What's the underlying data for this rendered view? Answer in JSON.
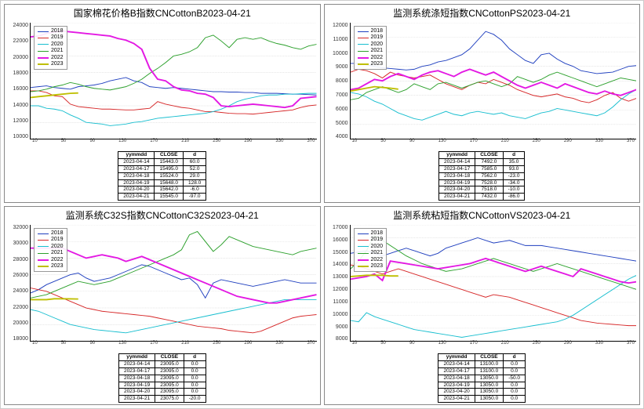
{
  "years": [
    "2018",
    "2019",
    "2020",
    "2021",
    "2022",
    "2023"
  ],
  "year_colors": {
    "2018": "#1f3fbf",
    "2019": "#d62728",
    "2020": "#17becf",
    "2021": "#2ca02c",
    "2022": "#e319e3",
    "2023": "#bfbf00"
  },
  "background_color": "#ffffff",
  "grid_color": "#cccccc",
  "axis_color": "#000000",
  "title_fontsize": 12,
  "tick_fontsize": 7,
  "legend_fontsize": 7,
  "table_fontsize": 6.5,
  "line_width": {
    "2018": 1,
    "2019": 1,
    "2020": 1,
    "2021": 1,
    "2022": 2,
    "2023": 2
  },
  "x_ticks": [
    10,
    30,
    50,
    70,
    90,
    110,
    130,
    150,
    170,
    190,
    210,
    230,
    250,
    270,
    290,
    310,
    330,
    350,
    370
  ],
  "panels": [
    {
      "key": "p1",
      "title": "国家棉花价格B指数CNCottonB2023-04-21",
      "type": "line",
      "ylim": [
        10000,
        24000
      ],
      "xlim": [
        10,
        370
      ],
      "y_ticks": [
        10000,
        12000,
        14000,
        16000,
        18000,
        20000,
        22000,
        24000
      ],
      "series": {
        "2018": [
          16200,
          16300,
          16400,
          16200,
          16100,
          16000,
          16300,
          16400,
          16500,
          16700,
          17000,
          17200,
          17400,
          17000,
          16800,
          16300,
          16200,
          16100,
          16200,
          16100,
          16000,
          15900,
          15800,
          15700,
          15700,
          15650,
          15650,
          15600,
          15600,
          15500,
          15500,
          15500,
          15450,
          15400,
          15400,
          15350,
          15300
        ],
        "2019": [
          15800,
          15800,
          15600,
          15200,
          15100,
          14200,
          13900,
          13800,
          13700,
          13600,
          13600,
          13550,
          13500,
          13500,
          13600,
          13700,
          14500,
          14200,
          14000,
          13800,
          13700,
          13500,
          13300,
          13300,
          13200,
          13100,
          13050,
          13050,
          13000,
          13100,
          13200,
          13300,
          13400,
          13500,
          13800,
          14000,
          14100
        ],
        "2020": [
          14000,
          14000,
          13700,
          13600,
          13400,
          12900,
          12500,
          12000,
          11900,
          11800,
          11600,
          11700,
          11800,
          12000,
          12100,
          12300,
          12500,
          12600,
          12700,
          12800,
          12900,
          13000,
          13100,
          13300,
          13600,
          14000,
          14500,
          14800,
          15000,
          15200,
          15300,
          15300,
          15400,
          15400,
          15450,
          15500,
          15500
        ],
        "2021": [
          15700,
          15800,
          16000,
          16300,
          16500,
          16800,
          16600,
          16300,
          16100,
          16000,
          15900,
          16100,
          16300,
          16700,
          17200,
          17900,
          18500,
          19200,
          20000,
          20200,
          20500,
          21000,
          22200,
          22500,
          21800,
          21000,
          22000,
          22200,
          22000,
          22200,
          21800,
          21500,
          21300,
          21000,
          20800,
          21200,
          21400
        ],
        "2022": [
          22300,
          22400,
          22700,
          22900,
          23000,
          22900,
          22800,
          22700,
          22600,
          22500,
          22400,
          22100,
          21900,
          21500,
          20800,
          18500,
          17200,
          17000,
          16300,
          15900,
          15800,
          15500,
          15400,
          15000,
          14000,
          13900,
          14000,
          14100,
          14200,
          14100,
          14000,
          13900,
          13800,
          14000,
          14900,
          15000,
          15100
        ],
        "2023": [
          15000,
          15100,
          15200,
          15300,
          15400,
          15500,
          15540
        ]
      },
      "table": {
        "cols": [
          "yymmdd",
          "CLOSE",
          "d"
        ],
        "rows": [
          [
            "2023-04-14",
            "15443.0",
            "60.0"
          ],
          [
            "2023-04-17",
            "15495.0",
            "52.0"
          ],
          [
            "2023-04-18",
            "15524.0",
            "29.0"
          ],
          [
            "2023-04-19",
            "15648.0",
            "128.0"
          ],
          [
            "2023-04-20",
            "15642.0",
            "-6.0"
          ],
          [
            "2023-04-21",
            "15545.0",
            "-97.0"
          ]
        ]
      }
    },
    {
      "key": "p2",
      "title": "监测系统涤短指数CNCottonPS2023-04-21",
      "type": "line",
      "ylim": [
        4000,
        12000
      ],
      "xlim": [
        10,
        370
      ],
      "y_ticks": [
        4000,
        5000,
        6000,
        7000,
        8000,
        9000,
        10000,
        11000,
        12000
      ],
      "series": {
        "2018": [
          9200,
          9200,
          9100,
          9000,
          8900,
          8850,
          8800,
          8750,
          8800,
          9000,
          9100,
          9300,
          9400,
          9600,
          9800,
          10200,
          10800,
          11400,
          11200,
          10800,
          10200,
          9800,
          9400,
          9200,
          9800,
          9900,
          9500,
          9200,
          9000,
          8700,
          8600,
          8500,
          8550,
          8600,
          8800,
          9000,
          9050
        ],
        "2019": [
          8600,
          8800,
          8700,
          8500,
          8200,
          8600,
          8400,
          8300,
          8200,
          8300,
          8400,
          8100,
          7800,
          7600,
          7400,
          7700,
          7900,
          7800,
          8100,
          7900,
          7700,
          7400,
          7200,
          7000,
          6900,
          7000,
          7100,
          6900,
          6800,
          6600,
          6500,
          6700,
          7000,
          7200,
          6800,
          6600,
          6800
        ],
        "2020": [
          7200,
          7100,
          6900,
          6600,
          6400,
          6100,
          5800,
          5600,
          5400,
          5300,
          5500,
          5700,
          5900,
          5700,
          5600,
          5800,
          5900,
          5800,
          5700,
          5800,
          5600,
          5500,
          5400,
          5600,
          5800,
          5900,
          6100,
          6000,
          5900,
          5800,
          5700,
          5600,
          5800,
          6200,
          6700,
          7100,
          7400
        ],
        "2021": [
          6700,
          6800,
          7200,
          7400,
          7600,
          7400,
          7200,
          7400,
          7800,
          7600,
          7400,
          7800,
          7900,
          7700,
          7500,
          7700,
          7900,
          8000,
          7800,
          7600,
          7800,
          8300,
          8100,
          7900,
          8100,
          8400,
          8600,
          8400,
          8200,
          8000,
          7800,
          7600,
          7800,
          8000,
          8200,
          8100,
          8000
        ],
        "2022": [
          7400,
          7500,
          7800,
          8100,
          8000,
          8300,
          8500,
          8300,
          8100,
          8400,
          8600,
          8700,
          8500,
          8300,
          8600,
          8800,
          8600,
          8400,
          8600,
          8300,
          8000,
          7700,
          7500,
          7700,
          7900,
          7700,
          7500,
          7800,
          7600,
          7400,
          7200,
          7100,
          7300,
          7100,
          7000,
          7200,
          7400
        ],
        "2023": [
          7300,
          7400,
          7500,
          7600,
          7550,
          7500,
          7430
        ]
      },
      "table": {
        "cols": [
          "yymmdd",
          "CLOSE",
          "d"
        ],
        "rows": [
          [
            "2023-04-14",
            "7492.0",
            "35.0"
          ],
          [
            "2023-04-17",
            "7585.0",
            "93.0"
          ],
          [
            "2023-04-18",
            "7562.0",
            "-23.0"
          ],
          [
            "2023-04-19",
            "7528.0",
            "-34.0"
          ],
          [
            "2023-04-20",
            "7518.0",
            "-10.0"
          ],
          [
            "2023-04-21",
            "7432.0",
            "-86.0"
          ]
        ]
      }
    },
    {
      "key": "p3",
      "title": "监测系统C32S指数CNCottonC32S2023-04-21",
      "type": "line",
      "ylim": [
        18000,
        32000
      ],
      "xlim": [
        10,
        370
      ],
      "y_ticks": [
        18000,
        20000,
        22000,
        24000,
        26000,
        28000,
        30000,
        32000
      ],
      "series": {
        "2018": [
          23800,
          24200,
          24800,
          25200,
          25600,
          26000,
          26200,
          25600,
          25200,
          25400,
          25600,
          26000,
          26400,
          26800,
          27200,
          27000,
          26600,
          26200,
          25800,
          25400,
          25600,
          24800,
          23200,
          25000,
          25400,
          25200,
          25000,
          24800,
          24600,
          24800,
          25000,
          25200,
          25400,
          25200,
          25000,
          25000,
          25000
        ],
        "2019": [
          24400,
          24200,
          24000,
          23600,
          23200,
          22800,
          22400,
          22000,
          21800,
          21600,
          21500,
          21400,
          21300,
          21200,
          21100,
          21000,
          20800,
          20600,
          20400,
          20200,
          20000,
          19800,
          19700,
          19600,
          19500,
          19300,
          19200,
          19100,
          19000,
          19200,
          19600,
          20000,
          20400,
          20800,
          21000,
          21100,
          21200
        ],
        "2020": [
          21800,
          21600,
          21200,
          20800,
          20400,
          20000,
          19800,
          19600,
          19400,
          19300,
          19200,
          19100,
          19000,
          19200,
          19400,
          19600,
          19800,
          20000,
          20200,
          20400,
          20600,
          20800,
          21000,
          21200,
          21400,
          21600,
          21800,
          22000,
          22200,
          22400,
          22600,
          22800,
          23000,
          23000,
          23000,
          23000,
          23000
        ],
        "2021": [
          23200,
          23400,
          23600,
          24000,
          24400,
          24800,
          25200,
          25000,
          24800,
          25000,
          25200,
          25600,
          26000,
          26400,
          26800,
          27200,
          27600,
          28000,
          28400,
          29000,
          30800,
          31200,
          30000,
          28800,
          29600,
          30600,
          30200,
          29800,
          29400,
          29200,
          29000,
          28800,
          28600,
          28400,
          28800,
          29000,
          29200
        ],
        "2022": [
          29200,
          29200,
          29200,
          29200,
          29200,
          28800,
          28400,
          28000,
          28200,
          28400,
          28200,
          28000,
          27600,
          27900,
          28200,
          27800,
          27400,
          27000,
          26600,
          26200,
          25800,
          25400,
          25000,
          24600,
          24200,
          23800,
          23400,
          23200,
          23000,
          22800,
          22600,
          22600,
          22800,
          23000,
          23200,
          23400,
          23600
        ],
        "2023": [
          23000,
          23000,
          23000,
          23100,
          23100,
          23095,
          23075
        ]
      },
      "table": {
        "cols": [
          "yymmdd",
          "CLOSE",
          "d"
        ],
        "rows": [
          [
            "2023-04-14",
            "23095.0",
            "0.0"
          ],
          [
            "2023-04-17",
            "23095.0",
            "0.0"
          ],
          [
            "2023-04-18",
            "23095.0",
            "0.0"
          ],
          [
            "2023-04-19",
            "23095.0",
            "0.0"
          ],
          [
            "2023-04-20",
            "23095.0",
            "0.0"
          ],
          [
            "2023-04-21",
            "23075.0",
            "-20.0"
          ]
        ]
      }
    },
    {
      "key": "p4",
      "title": "监测系统粘短指数CNCottonVS2023-04-21",
      "type": "line",
      "ylim": [
        8000,
        17000
      ],
      "xlim": [
        10,
        370
      ],
      "y_ticks": [
        8000,
        9000,
        10000,
        11000,
        12000,
        13000,
        14000,
        15000,
        16000,
        17000
      ],
      "series": {
        "2018": [
          14800,
          14900,
          15000,
          14800,
          14600,
          14800,
          15000,
          15200,
          15000,
          14800,
          14600,
          14800,
          15200,
          15400,
          15600,
          15800,
          16000,
          15800,
          15600,
          15700,
          15800,
          15600,
          15400,
          15400,
          15400,
          15300,
          15200,
          15100,
          15000,
          14900,
          14800,
          14700,
          14600,
          14500,
          14400,
          14300,
          14200
        ],
        "2019": [
          13900,
          13800,
          13600,
          13400,
          13200,
          13400,
          13600,
          13400,
          13200,
          13000,
          12800,
          12600,
          12400,
          12200,
          12000,
          11800,
          11600,
          11400,
          11600,
          11500,
          11400,
          11200,
          11000,
          10800,
          10600,
          10400,
          10200,
          10000,
          9800,
          9600,
          9500,
          9400,
          9350,
          9300,
          9250,
          9200,
          9200
        ],
        "2020": [
          9600,
          9500,
          10200,
          9900,
          9700,
          9500,
          9300,
          9100,
          8900,
          8800,
          8700,
          8600,
          8500,
          8400,
          8300,
          8400,
          8500,
          8600,
          8700,
          8800,
          8900,
          9000,
          9100,
          9200,
          9300,
          9400,
          9500,
          9700,
          10000,
          10400,
          10800,
          11200,
          11600,
          12000,
          12400,
          12800,
          13100
        ],
        "2021": [
          13600,
          14200,
          15000,
          16200,
          15800,
          15400,
          15000,
          14600,
          14300,
          14000,
          13800,
          13600,
          13400,
          13500,
          13600,
          13800,
          14000,
          14200,
          14400,
          14200,
          14000,
          13800,
          13600,
          13400,
          13600,
          13800,
          14000,
          13800,
          13600,
          13400,
          13200,
          13000,
          12800,
          12600,
          12400,
          12200,
          12000
        ],
        "2022": [
          12800,
          12900,
          13000,
          13200,
          12700,
          14200,
          14100,
          14000,
          13900,
          13800,
          13700,
          13600,
          13700,
          13800,
          13900,
          14000,
          14200,
          14400,
          14200,
          14000,
          13800,
          13600,
          13400,
          13600,
          13800,
          13600,
          13400,
          13200,
          13000,
          13600,
          13400,
          13200,
          13000,
          12800,
          12600,
          12500,
          12600
        ],
        "2023": [
          13000,
          13050,
          13100,
          13100,
          13100,
          13050,
          13050
        ]
      },
      "table": {
        "cols": [
          "yymmdd",
          "CLOSE",
          "d"
        ],
        "rows": [
          [
            "2023-04-14",
            "13100.0",
            "0.0"
          ],
          [
            "2023-04-17",
            "13100.0",
            "0.0"
          ],
          [
            "2023-04-18",
            "13050.0",
            "-50.0"
          ],
          [
            "2023-04-19",
            "13050.0",
            "0.0"
          ],
          [
            "2023-04-20",
            "13050.0",
            "0.0"
          ],
          [
            "2023-04-21",
            "13050.0",
            "0.0"
          ]
        ]
      }
    }
  ]
}
